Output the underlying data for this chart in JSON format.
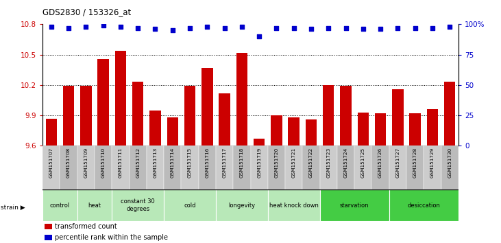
{
  "title": "GDS2830 / 153326_at",
  "samples": [
    "GSM151707",
    "GSM151708",
    "GSM151709",
    "GSM151710",
    "GSM151711",
    "GSM151712",
    "GSM151713",
    "GSM151714",
    "GSM151715",
    "GSM151716",
    "GSM151717",
    "GSM151718",
    "GSM151719",
    "GSM151720",
    "GSM151721",
    "GSM151722",
    "GSM151723",
    "GSM151724",
    "GSM151725",
    "GSM151726",
    "GSM151727",
    "GSM151728",
    "GSM151729",
    "GSM151730"
  ],
  "bar_values": [
    9.87,
    10.19,
    10.19,
    10.46,
    10.54,
    10.23,
    9.95,
    9.88,
    10.19,
    10.37,
    10.12,
    10.52,
    9.67,
    9.9,
    9.88,
    9.86,
    10.2,
    10.19,
    9.93,
    9.92,
    10.16,
    9.92,
    9.96,
    10.23
  ],
  "percentile_values": [
    98,
    97,
    98,
    99,
    98,
    97,
    96,
    95,
    97,
    98,
    97,
    98,
    90,
    97,
    97,
    96,
    97,
    97,
    96,
    96,
    97,
    97,
    97,
    98
  ],
  "bar_color": "#cc0000",
  "percentile_color": "#0000cc",
  "ylim_left": [
    9.6,
    10.8
  ],
  "ylim_right": [
    0,
    100
  ],
  "yticks_left": [
    9.6,
    9.9,
    10.2,
    10.5,
    10.8
  ],
  "yticks_right": [
    0,
    25,
    50,
    75,
    100
  ],
  "ytick_labels_right": [
    "0",
    "25",
    "50",
    "75",
    "100%"
  ],
  "groups": [
    {
      "label": "control",
      "start": 0,
      "end": 2,
      "color": "#b8e8b8"
    },
    {
      "label": "heat",
      "start": 2,
      "end": 4,
      "color": "#b8e8b8"
    },
    {
      "label": "constant 30\ndegrees",
      "start": 4,
      "end": 7,
      "color": "#b8e8b8"
    },
    {
      "label": "cold",
      "start": 7,
      "end": 10,
      "color": "#b8e8b8"
    },
    {
      "label": "longevity",
      "start": 10,
      "end": 13,
      "color": "#b8e8b8"
    },
    {
      "label": "heat knock down",
      "start": 13,
      "end": 16,
      "color": "#b8e8b8"
    },
    {
      "label": "starvation",
      "start": 16,
      "end": 20,
      "color": "#44cc44"
    },
    {
      "label": "desiccation",
      "start": 20,
      "end": 24,
      "color": "#44cc44"
    }
  ],
  "background_color": "#ffffff",
  "tick_color_left": "#cc0000",
  "tick_color_right": "#0000cc",
  "label_bg_color": "#cccccc",
  "label_bg_alt_color": "#bbbbbb"
}
